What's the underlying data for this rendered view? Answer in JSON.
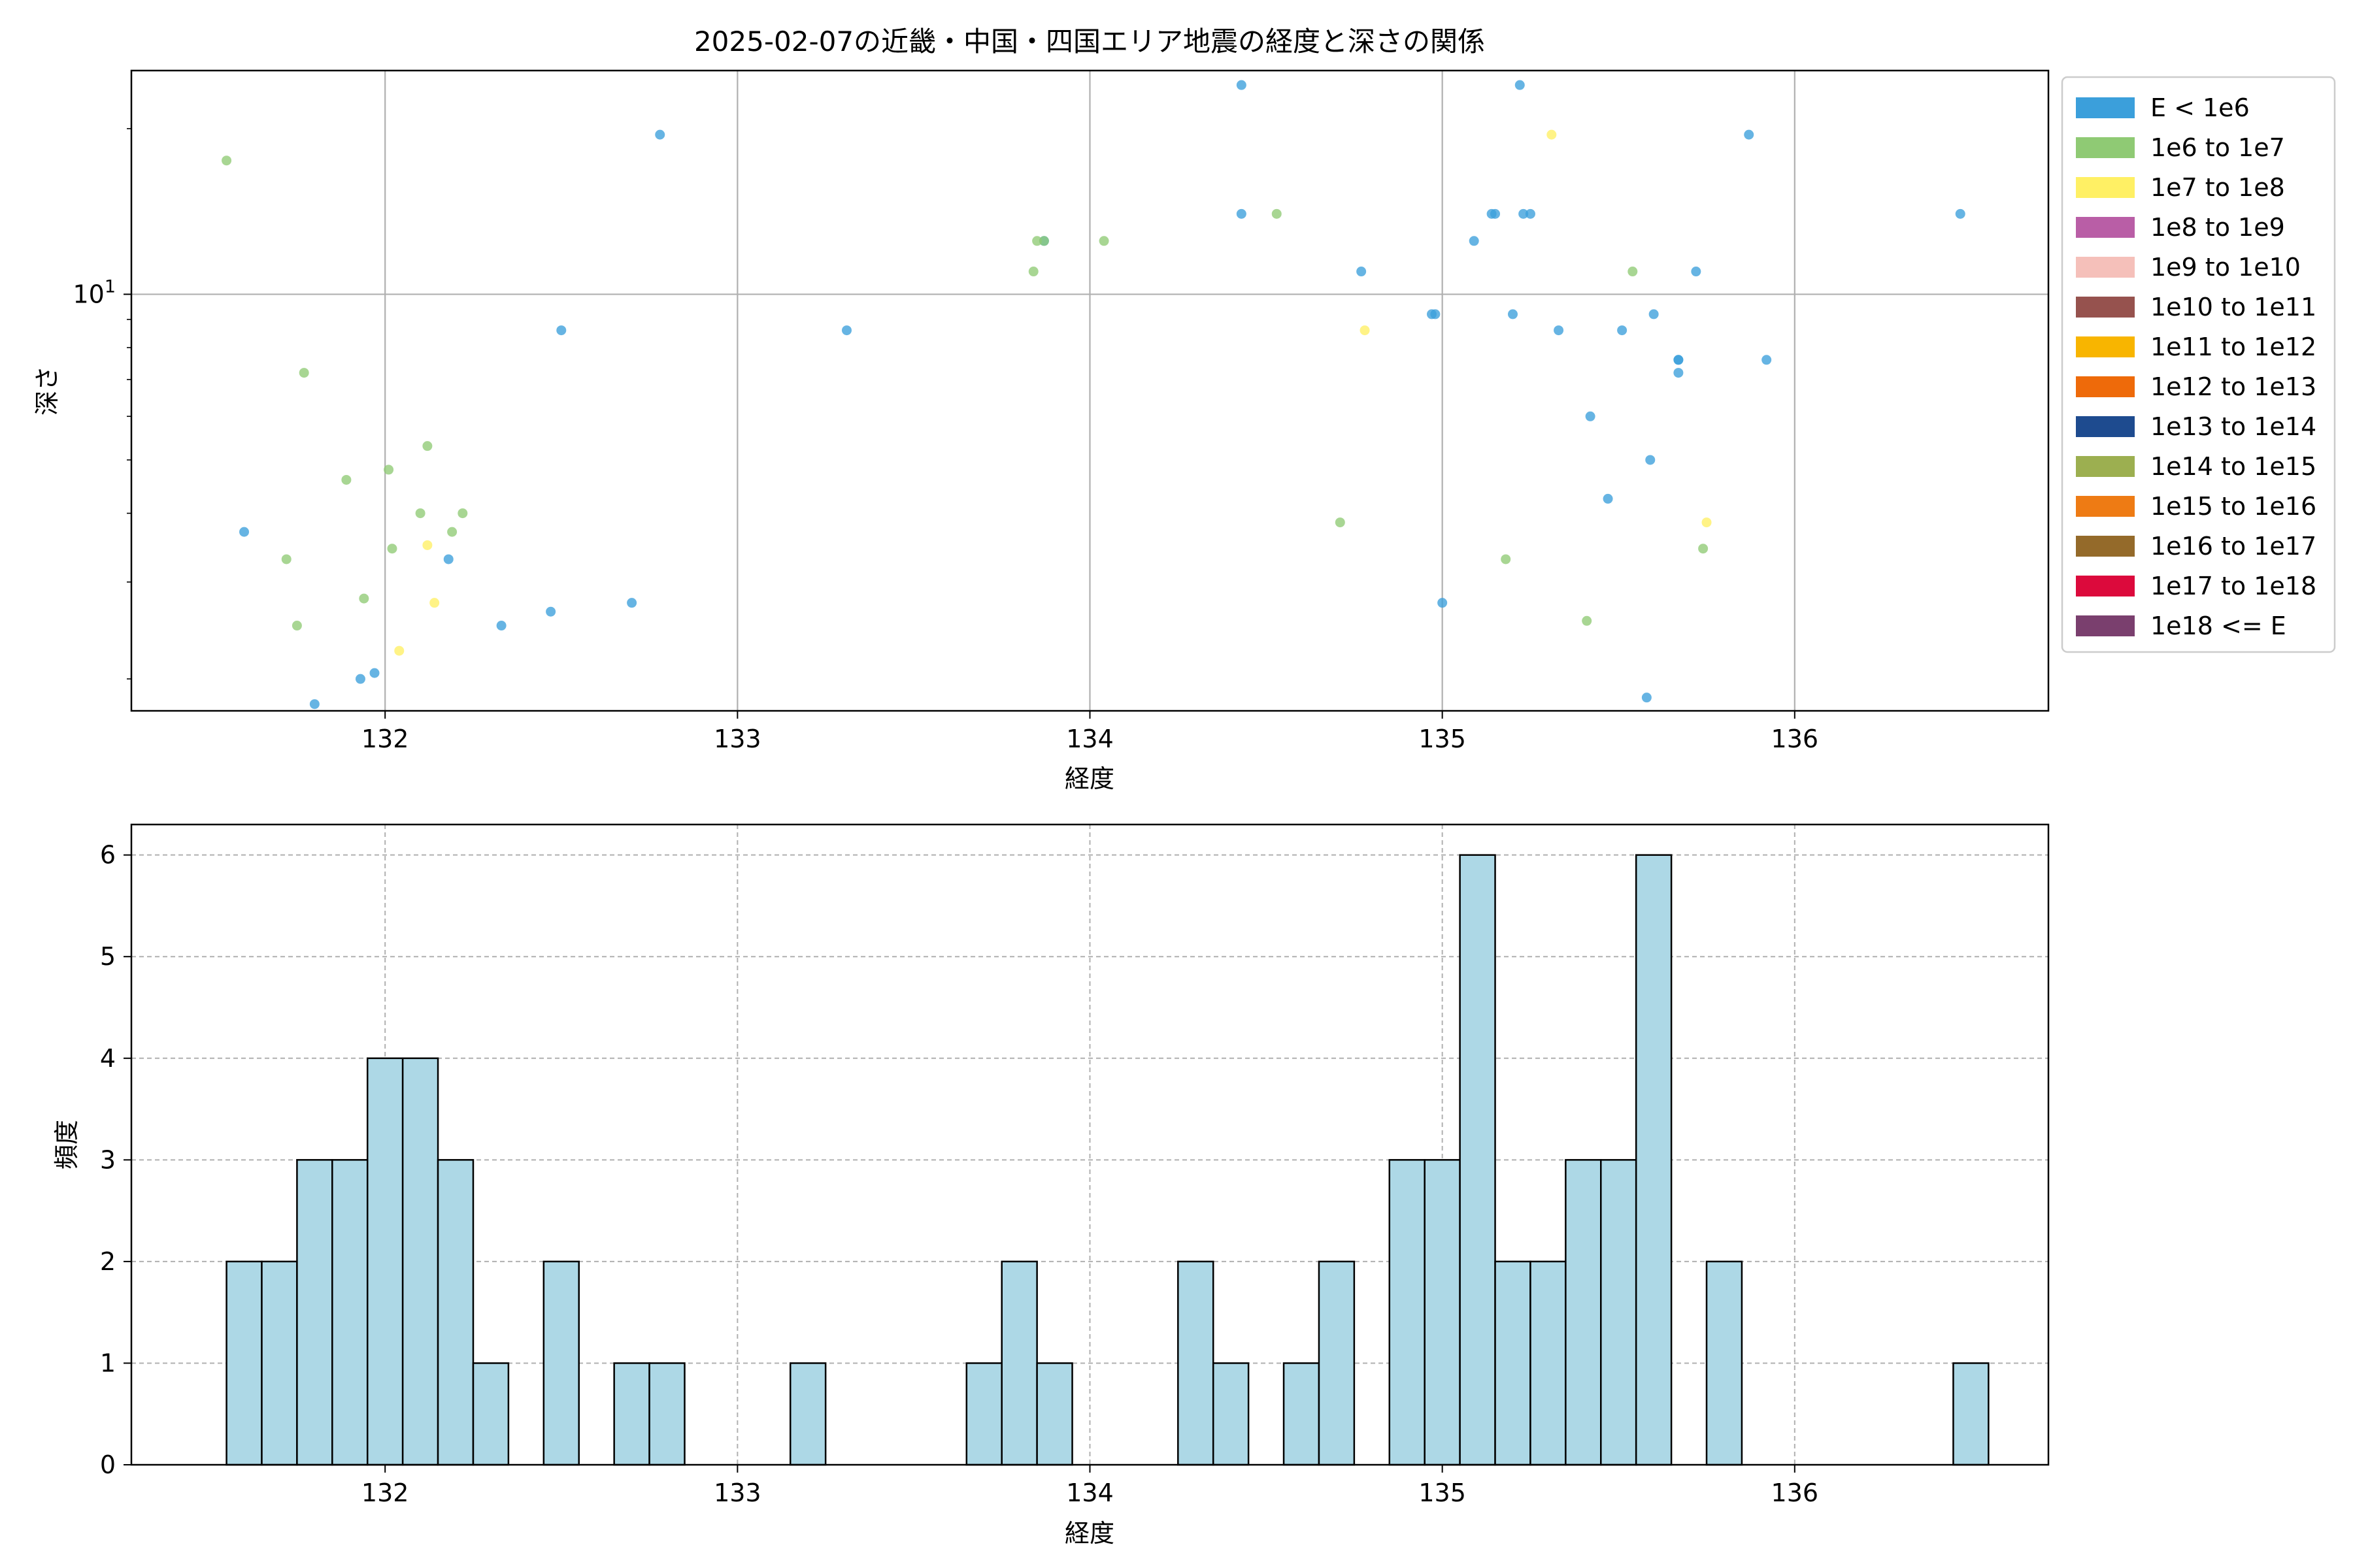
{
  "chart_data": [
    {
      "type": "scatter",
      "title": "2025-02-07の近畿・中国・四国エリア地震の経度と深さの関係",
      "xlabel": "経度",
      "ylabel": "深さ",
      "xlim": [
        131.28,
        136.72
      ],
      "ylim": [
        1.75,
        25.5
      ],
      "yscale": "log",
      "xticks": [
        132,
        133,
        134,
        135,
        136
      ],
      "ymajor_ticks": [
        {
          "value": 10,
          "base": "10",
          "exp": "1"
        }
      ],
      "yminor_ticks": [
        2,
        3,
        4,
        5,
        6,
        7,
        8,
        9,
        20
      ],
      "grid": true,
      "legend": {
        "placement": "outside right",
        "entries": [
          {
            "label": "E < 1e6",
            "color": "#3b9fdb"
          },
          {
            "label": "1e6 to 1e7",
            "color": "#8fca74"
          },
          {
            "label": "1e7 to 1e8",
            "color": "#fff064"
          },
          {
            "label": "1e8 to 1e9",
            "color": "#b95ea6"
          },
          {
            "label": "1e9 to 1e10",
            "color": "#f5c0ba"
          },
          {
            "label": "1e10 to 1e11",
            "color": "#96524e"
          },
          {
            "label": "1e11 to 1e12",
            "color": "#f8b500"
          },
          {
            "label": "1e12 to 1e13",
            "color": "#ee6a0a"
          },
          {
            "label": "1e13 to 1e14",
            "color": "#1e4b8f"
          },
          {
            "label": "1e14 to 1e15",
            "color": "#9caf50"
          },
          {
            "label": "1e15 to 1e16",
            "color": "#ee7b14"
          },
          {
            "label": "1e16 to 1e17",
            "color": "#946a2a"
          },
          {
            "label": "1e17 to 1e18",
            "color": "#dc0a3c"
          },
          {
            "label": "1e18 <= E",
            "color": "#7a3f6e"
          }
        ]
      },
      "series": [
        {
          "class": 0,
          "points": [
            [
              131.6,
              3.7
            ],
            [
              131.8,
              1.8
            ],
            [
              131.93,
              2.0
            ],
            [
              131.97,
              2.05
            ],
            [
              132.18,
              3.3
            ],
            [
              132.33,
              2.5
            ],
            [
              132.47,
              2.65
            ],
            [
              132.5,
              8.6
            ],
            [
              132.7,
              2.75
            ],
            [
              132.78,
              19.5
            ],
            [
              133.31,
              8.6
            ],
            [
              133.87,
              12.5
            ],
            [
              134.43,
              24.0
            ],
            [
              134.43,
              14.0
            ],
            [
              134.77,
              11.0
            ],
            [
              134.97,
              9.2
            ],
            [
              134.98,
              9.2
            ],
            [
              135.0,
              2.75
            ],
            [
              135.09,
              12.5
            ],
            [
              135.14,
              14.0
            ],
            [
              135.15,
              14.0
            ],
            [
              135.2,
              9.2
            ],
            [
              135.22,
              24.0
            ],
            [
              135.23,
              14.0
            ],
            [
              135.25,
              14.0
            ],
            [
              135.33,
              8.6
            ],
            [
              135.42,
              6.0
            ],
            [
              135.47,
              4.25
            ],
            [
              135.51,
              8.6
            ],
            [
              135.58,
              1.85
            ],
            [
              135.59,
              5.0
            ],
            [
              135.6,
              9.2
            ],
            [
              135.67,
              7.6
            ],
            [
              135.67,
              7.6
            ],
            [
              135.67,
              7.2
            ],
            [
              135.72,
              11.0
            ],
            [
              135.87,
              19.5
            ],
            [
              135.92,
              7.6
            ],
            [
              136.47,
              14.0
            ]
          ]
        },
        {
          "class": 1,
          "points": [
            [
              131.55,
              17.5
            ],
            [
              131.72,
              3.3
            ],
            [
              131.75,
              2.5
            ],
            [
              131.77,
              7.2
            ],
            [
              131.89,
              4.6
            ],
            [
              131.94,
              2.8
            ],
            [
              132.01,
              4.8
            ],
            [
              132.02,
              3.45
            ],
            [
              132.1,
              4.0
            ],
            [
              132.12,
              5.3
            ],
            [
              132.19,
              3.7
            ],
            [
              132.22,
              4.0
            ],
            [
              133.84,
              11.0
            ],
            [
              133.85,
              12.5
            ],
            [
              133.87,
              12.5
            ],
            [
              134.04,
              12.5
            ],
            [
              134.53,
              14.0
            ],
            [
              134.71,
              3.85
            ],
            [
              135.18,
              3.3
            ],
            [
              135.41,
              2.55
            ],
            [
              135.54,
              11.0
            ],
            [
              135.74,
              3.45
            ]
          ]
        },
        {
          "class": 2,
          "points": [
            [
              132.04,
              2.25
            ],
            [
              132.12,
              3.5
            ],
            [
              132.14,
              2.75
            ],
            [
              134.78,
              8.6
            ],
            [
              135.31,
              19.5
            ],
            [
              135.75,
              3.85
            ]
          ]
        }
      ]
    },
    {
      "type": "bar",
      "subtype": "histogram",
      "xlabel": "経度",
      "ylabel": "頻度",
      "xlim": [
        131.28,
        136.72
      ],
      "ylim": [
        0,
        6.3
      ],
      "xticks": [
        132,
        133,
        134,
        135,
        136
      ],
      "yticks": [
        0,
        1,
        2,
        3,
        4,
        5,
        6
      ],
      "grid": true,
      "bin_start": 131.55,
      "bin_width": 0.1,
      "values": [
        2,
        2,
        3,
        3,
        4,
        4,
        3,
        1,
        0,
        2,
        0,
        1,
        1,
        0,
        0,
        0,
        1,
        0,
        0,
        0,
        0,
        1,
        2,
        1,
        0,
        0,
        0,
        2,
        1,
        0,
        1,
        2,
        0,
        3,
        3,
        6,
        2,
        2,
        3,
        3,
        6,
        0,
        2,
        0,
        0,
        0,
        0,
        0,
        0,
        1
      ]
    }
  ]
}
